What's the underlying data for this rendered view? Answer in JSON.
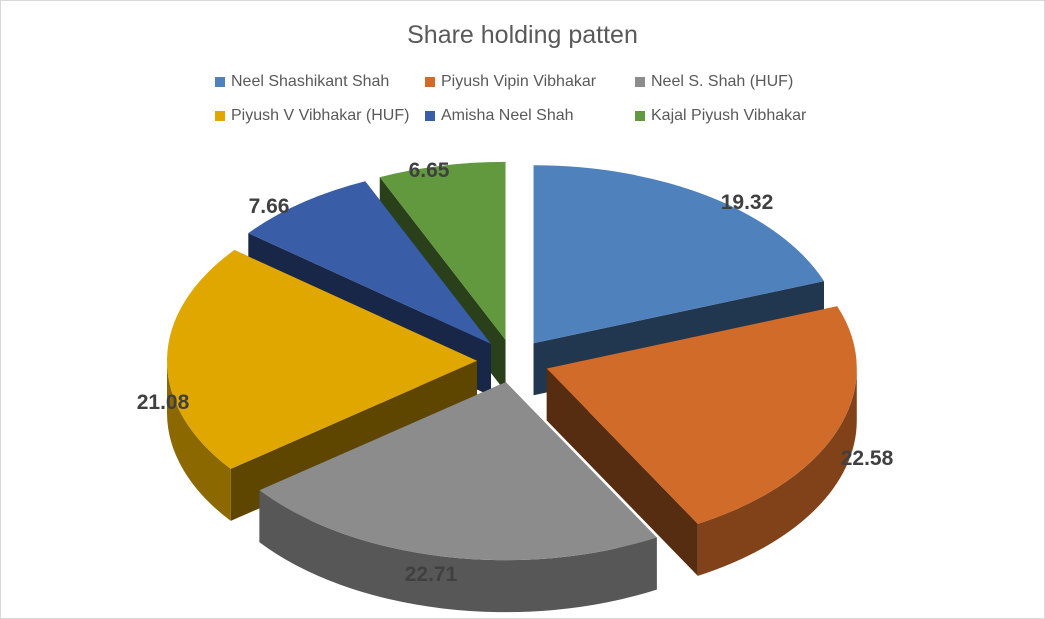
{
  "chart_data": {
    "type": "pie",
    "title": "Share holding patten",
    "legend_position": "top",
    "style": "3d-exploded",
    "categories": [
      "Neel Shashikant Shah",
      "Piyush Vipin Vibhakar",
      "Neel S. Shah (HUF)",
      "Piyush V Vibhakar (HUF)",
      "Amisha Neel Shah",
      "Kajal Piyush Vibhakar"
    ],
    "values": [
      19.32,
      22.58,
      22.71,
      21.08,
      7.66,
      6.65
    ],
    "data_labels": [
      "19.32",
      "22.58",
      "22.71",
      "21.08",
      "7.66",
      "6.65"
    ],
    "colors": [
      "#4f81bd",
      "#d06b2a",
      "#8c8c8c",
      "#e0a700",
      "#3a5da8",
      "#62993e"
    ]
  }
}
